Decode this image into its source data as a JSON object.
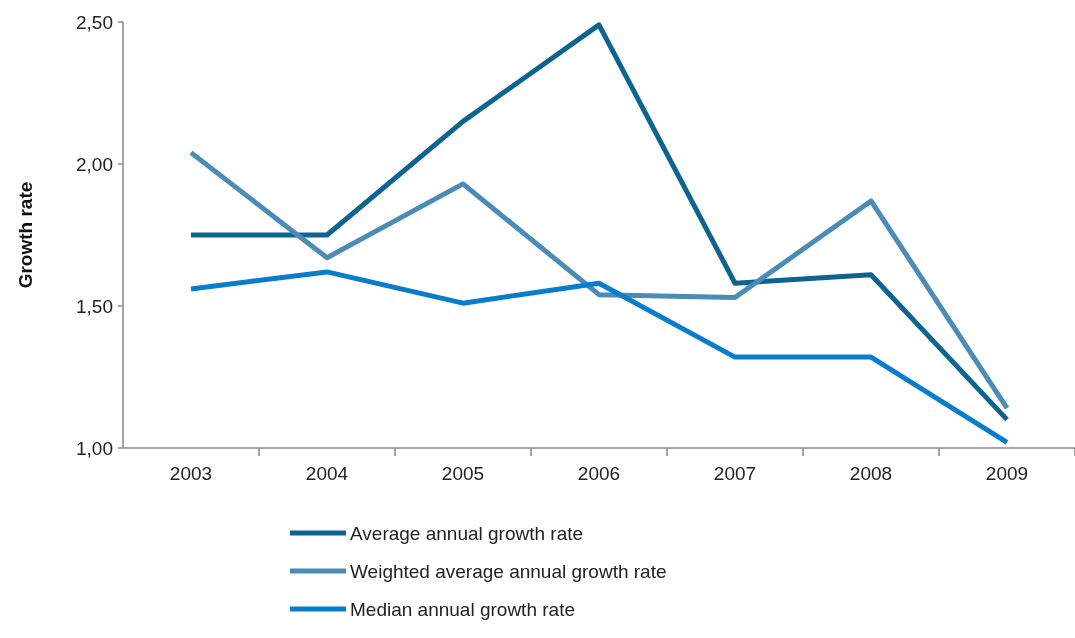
{
  "chart_data": {
    "type": "line",
    "ylabel": "Growth rate",
    "categories": [
      "2003",
      "2004",
      "2005",
      "2006",
      "2007",
      "2008",
      "2009"
    ],
    "series": [
      {
        "name": "Average annual growth rate",
        "color": "#0e6491",
        "values": [
          1.75,
          1.75,
          2.15,
          2.49,
          1.58,
          1.61,
          1.1
        ]
      },
      {
        "name": "Weighted average annual growth rate",
        "color": "#4a8bb8",
        "values": [
          2.04,
          1.67,
          1.93,
          1.54,
          1.53,
          1.87,
          1.14
        ]
      },
      {
        "name": "Median annual growth rate",
        "color": "#0a7ccc",
        "values": [
          1.56,
          1.62,
          1.51,
          1.58,
          1.32,
          1.32,
          1.02
        ]
      }
    ],
    "ylim": [
      1.0,
      2.5
    ],
    "yticks": [
      {
        "value": 1.0,
        "label": "1,00"
      },
      {
        "value": 1.5,
        "label": "1,50"
      },
      {
        "value": 2.0,
        "label": "2,00"
      },
      {
        "value": 2.5,
        "label": "2,50"
      }
    ],
    "legend": "bottom",
    "grid": false
  }
}
